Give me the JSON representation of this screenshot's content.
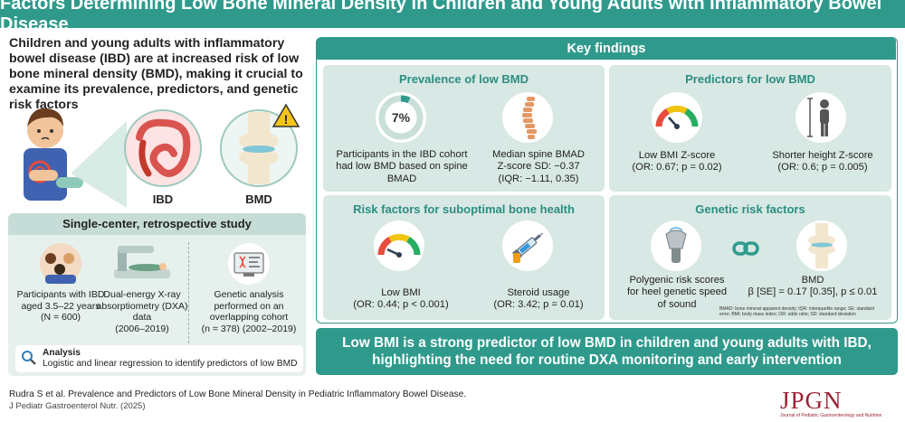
{
  "title": "Factors Determining Low Bone Mineral Density in Children and Young Adults with Inflammatory Bowel Disease",
  "intro": "Children and young adults with inflammatory bowel disease (IBD) are at increased risk of low bone mineral density (BMD), making it crucial to examine its prevalence, predictors, and genetic risk factors",
  "illustration": {
    "label_ibd": "IBD",
    "label_bmd": "BMD",
    "warning": "!"
  },
  "study": {
    "heading": "Single-center, retrospective study",
    "col1": {
      "line1": "Participants with IBD aged 3.5–22 years",
      "line2": "(N = 600)"
    },
    "col2": {
      "line1": "Dual-energy X-ray absorptiometry (DXA) data",
      "line2": "(2006–2019)"
    },
    "col3": {
      "line1": "Genetic analysis performed on an overlapping cohort",
      "line2": "(n = 378) (2002–2019)"
    },
    "analysis_label": "Analysis",
    "analysis_text": "Logistic and linear regression to identify predictors of low BMD"
  },
  "key_findings": {
    "heading": "Key findings",
    "prevalence": {
      "title": "Prevalence of low BMD",
      "percent": "7%",
      "percent_value": 0.07,
      "item1": "Participants in the IBD cohort had low BMD based on spine BMAD",
      "item2_l1": "Median spine BMAD",
      "item2_l2": "Z-score SD: −0.37",
      "item2_l3": "(IQR: −1.11, 0.35)"
    },
    "predictors": {
      "title": "Predictors for low BMD",
      "item1_l1": "Low BMI Z-score",
      "item1_l2": "(OR: 0.67; p = 0.02)",
      "item2_l1": "Shorter height Z-score",
      "item2_l2": "(OR: 0.6; p = 0.005)"
    },
    "risk": {
      "title": "Risk factors for suboptimal bone health",
      "item1_l1": "Low BMI",
      "item1_l2": "(OR: 0.44; p < 0.001)",
      "item2_l1": "Steroid usage",
      "item2_l2": "(OR: 3.42; p = 0.01)"
    },
    "genetic": {
      "title": "Genetic risk factors",
      "item1": "Polygenic risk scores for heel genetic speed of sound",
      "item2_l1": "BMD",
      "item2_l2": "β [SE] = 0.17 [0.35], p ≤ 0.01",
      "footnote": "BMAD: bone mineral apparent density; IQR: interquartile range; SE: standard error; BMI: body mass index; OR: odds ratio; SD: standard deviation"
    }
  },
  "conclusion": "Low BMI is a strong predictor of low BMD in children and young adults with IBD, highlighting the need for routine DXA monitoring and early intervention",
  "citation": {
    "line1": "Rudra S et al. Prevalence and Predictors of Low Bone Mineral Density in Pediatric Inflammatory Bowel Disease.",
    "line2": "J Pediatr Gastroenterol Nutr. (2025)"
  },
  "journal": {
    "logo": "JPGN",
    "tagline": "Journal of Pediatric Gastroenterology and Nutrition"
  },
  "colors": {
    "teal": "#2f9a8c",
    "panel": "#d8e8e4",
    "study_bg": "#e6f0ed",
    "journal_red": "#9d2235"
  }
}
